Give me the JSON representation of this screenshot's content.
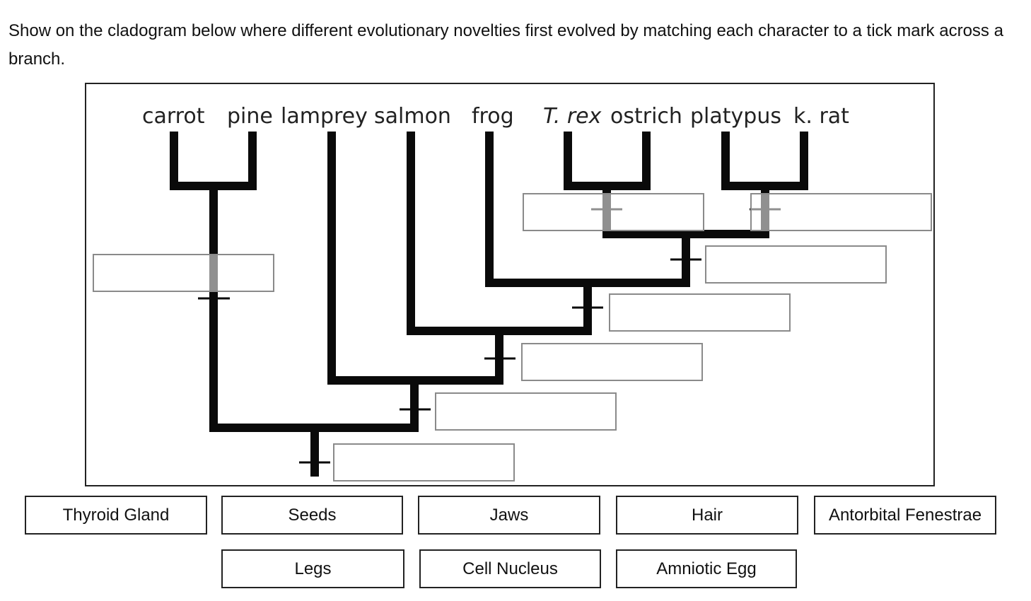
{
  "instructions": "Show on the cladogram below where different evolutionary novelties first evolved by matching each character to a tick mark across a branch.",
  "taxa": [
    "carrot",
    "pine",
    "lamprey",
    "salmon",
    "frog",
    "T. rex",
    "ostrich",
    "platypus",
    "k. rat"
  ],
  "choices": [
    "Thyroid Gland",
    "Seeds",
    "Jaws",
    "Hair",
    "Antorbital Fenestrae",
    "Legs",
    "Cell Nucleus",
    "Amniotic Egg"
  ],
  "colors": {
    "branch": "#0a0a0a",
    "drop_zone_border": "#8a8a8a",
    "frame_border": "#222222"
  }
}
